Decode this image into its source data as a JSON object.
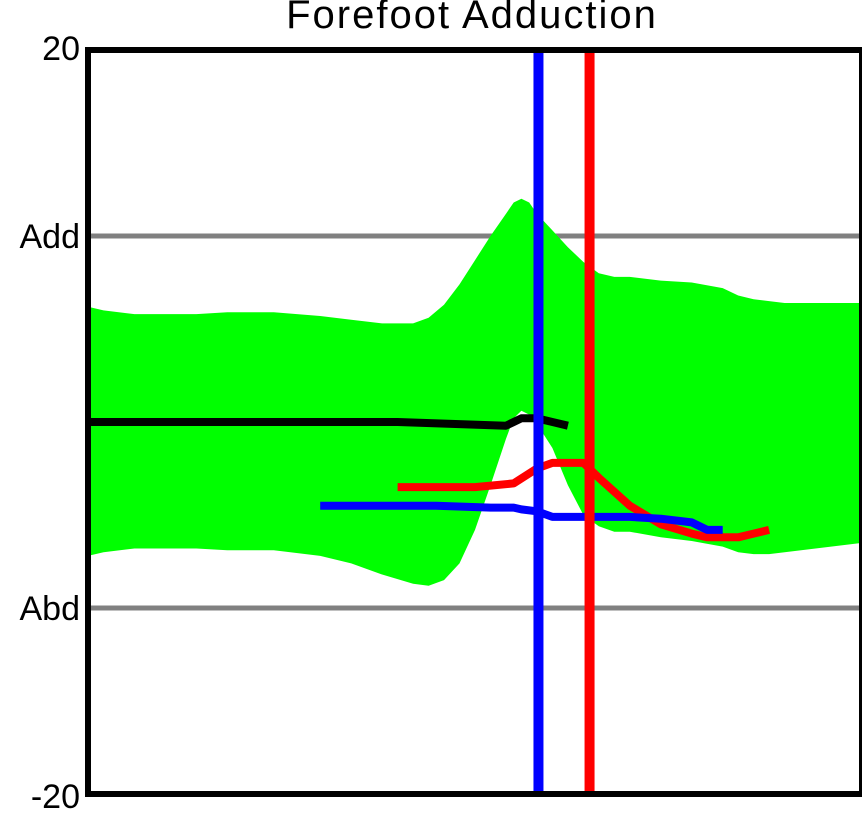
{
  "chart_data": {
    "type": "line",
    "title": "Forefoot Adduction",
    "xlabel": "",
    "ylabel": "",
    "xlim": [
      0,
      100
    ],
    "ylim": [
      -20,
      20
    ],
    "y_ticks": [
      {
        "label": "20",
        "value": 20
      },
      {
        "label": "Add",
        "value": 10
      },
      {
        "label": "Abd",
        "value": -10
      },
      {
        "label": "-20",
        "value": -20
      }
    ],
    "reference_lines": [
      10,
      -10
    ],
    "band": {
      "name": "",
      "color": "#00ff00",
      "x": [
        0,
        2,
        6,
        14,
        18,
        24,
        30,
        34,
        38,
        42,
        44,
        46,
        48,
        50,
        52,
        54,
        55,
        56,
        57,
        58,
        60,
        62,
        64,
        66,
        68,
        70,
        74,
        78,
        82,
        84,
        86,
        88,
        90,
        94,
        98,
        100
      ],
      "upper": [
        6.2,
        6.0,
        5.8,
        5.8,
        5.9,
        5.9,
        5.7,
        5.5,
        5.3,
        5.3,
        5.6,
        6.3,
        7.4,
        8.7,
        10.0,
        11.2,
        11.8,
        12.0,
        11.8,
        11.2,
        10.3,
        9.4,
        8.6,
        8.0,
        7.8,
        7.8,
        7.6,
        7.5,
        7.2,
        6.8,
        6.6,
        6.5,
        6.4,
        6.4,
        6.4,
        6.4
      ],
      "lower": [
        -7.2,
        -7.0,
        -6.8,
        -6.8,
        -6.9,
        -6.9,
        -7.2,
        -7.6,
        -8.2,
        -8.7,
        -8.8,
        -8.5,
        -7.6,
        -5.8,
        -3.4,
        -0.9,
        0.2,
        0.6,
        0.4,
        -0.1,
        -1.4,
        -3.4,
        -5.0,
        -5.6,
        -5.9,
        -5.9,
        -6.2,
        -6.4,
        -6.7,
        -7.0,
        -7.1,
        -7.1,
        -7.0,
        -6.8,
        -6.6,
        -6.5
      ]
    },
    "series": [
      {
        "name": "",
        "color": "#000000",
        "x": [
          0,
          20,
          40,
          54,
          55,
          56,
          58,
          60,
          62
        ],
        "y": [
          0.0,
          0.0,
          0.0,
          -0.2,
          0.0,
          0.2,
          0.2,
          0.0,
          -0.2
        ]
      },
      {
        "name": "",
        "color": "#ff0000",
        "x": [
          40,
          50,
          55,
          58,
          60,
          62,
          64,
          66,
          70,
          74,
          78,
          80,
          84,
          86,
          88
        ],
        "y": [
          -3.5,
          -3.5,
          -3.3,
          -2.5,
          -2.2,
          -2.2,
          -2.2,
          -3.0,
          -4.5,
          -5.5,
          -6.0,
          -6.2,
          -6.2,
          -6.0,
          -5.8
        ]
      },
      {
        "name": "",
        "color": "#0000ff",
        "x": [
          30,
          45,
          52,
          55,
          56,
          58,
          60,
          62,
          65,
          70,
          74,
          78,
          80,
          82
        ],
        "y": [
          -4.5,
          -4.5,
          -4.6,
          -4.6,
          -4.7,
          -4.8,
          -5.1,
          -5.1,
          -5.1,
          -5.1,
          -5.2,
          -5.4,
          -5.8,
          -5.8
        ]
      }
    ],
    "vertical_markers": [
      {
        "x": 58.2,
        "color": "#0000ff"
      },
      {
        "x": 64.8,
        "color": "#ff0000"
      }
    ],
    "grid": false,
    "legend": "none"
  }
}
